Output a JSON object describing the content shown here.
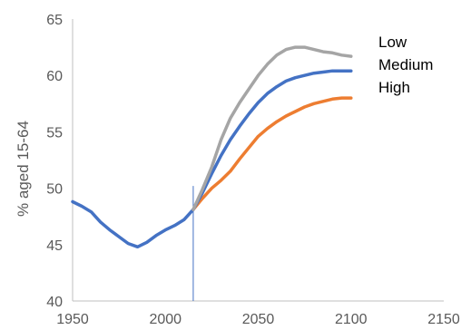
{
  "chart_data": {
    "type": "line",
    "title": "",
    "xlabel": "",
    "ylabel": "% aged 15-64",
    "xlim": [
      1950,
      2150
    ],
    "ylim": [
      40,
      65
    ],
    "x_ticks": [
      1950,
      2000,
      2050,
      2100,
      2150
    ],
    "y_ticks": [
      40,
      45,
      50,
      55,
      60,
      65
    ],
    "grid": false,
    "legend": {
      "placement": "top-right",
      "entries": [
        "Low",
        "Medium",
        "High"
      ]
    },
    "vertical_marker": {
      "x": 2015,
      "from": 40,
      "to": 50.2
    },
    "history": {
      "color": "#4472C4",
      "points": [
        [
          1950,
          48.8
        ],
        [
          1955,
          48.4
        ],
        [
          1960,
          47.9
        ],
        [
          1965,
          47.0
        ],
        [
          1970,
          46.3
        ],
        [
          1975,
          45.7
        ],
        [
          1980,
          45.1
        ],
        [
          1985,
          44.8
        ],
        [
          1990,
          45.2
        ],
        [
          1995,
          45.8
        ],
        [
          2000,
          46.3
        ],
        [
          2005,
          46.7
        ],
        [
          2010,
          47.2
        ],
        [
          2015,
          48.1
        ]
      ]
    },
    "series": [
      {
        "name": "Low",
        "color": "#A5A5A5",
        "points": [
          [
            2015,
            48.1
          ],
          [
            2020,
            49.9
          ],
          [
            2025,
            51.9
          ],
          [
            2030,
            54.3
          ],
          [
            2035,
            56.2
          ],
          [
            2040,
            57.6
          ],
          [
            2045,
            58.8
          ],
          [
            2050,
            60.0
          ],
          [
            2055,
            61.0
          ],
          [
            2060,
            61.8
          ],
          [
            2065,
            62.3
          ],
          [
            2070,
            62.5
          ],
          [
            2075,
            62.5
          ],
          [
            2080,
            62.3
          ],
          [
            2085,
            62.1
          ],
          [
            2090,
            62.0
          ],
          [
            2095,
            61.8
          ],
          [
            2100,
            61.7
          ]
        ]
      },
      {
        "name": "Medium",
        "color": "#4472C4",
        "points": [
          [
            2015,
            48.1
          ],
          [
            2020,
            49.6
          ],
          [
            2025,
            51.3
          ],
          [
            2030,
            52.9
          ],
          [
            2035,
            54.3
          ],
          [
            2040,
            55.5
          ],
          [
            2045,
            56.6
          ],
          [
            2050,
            57.6
          ],
          [
            2055,
            58.4
          ],
          [
            2060,
            59.0
          ],
          [
            2065,
            59.5
          ],
          [
            2070,
            59.8
          ],
          [
            2075,
            60.0
          ],
          [
            2080,
            60.2
          ],
          [
            2085,
            60.3
          ],
          [
            2090,
            60.4
          ],
          [
            2095,
            60.4
          ],
          [
            2100,
            60.4
          ]
        ]
      },
      {
        "name": "High",
        "color": "#ED7D31",
        "points": [
          [
            2015,
            48.1
          ],
          [
            2020,
            49.1
          ],
          [
            2025,
            50.0
          ],
          [
            2030,
            50.7
          ],
          [
            2035,
            51.5
          ],
          [
            2040,
            52.6
          ],
          [
            2045,
            53.6
          ],
          [
            2050,
            54.6
          ],
          [
            2055,
            55.3
          ],
          [
            2060,
            55.9
          ],
          [
            2065,
            56.4
          ],
          [
            2070,
            56.8
          ],
          [
            2075,
            57.2
          ],
          [
            2080,
            57.5
          ],
          [
            2085,
            57.7
          ],
          [
            2090,
            57.9
          ],
          [
            2095,
            58.0
          ],
          [
            2100,
            58.0
          ]
        ]
      }
    ]
  }
}
